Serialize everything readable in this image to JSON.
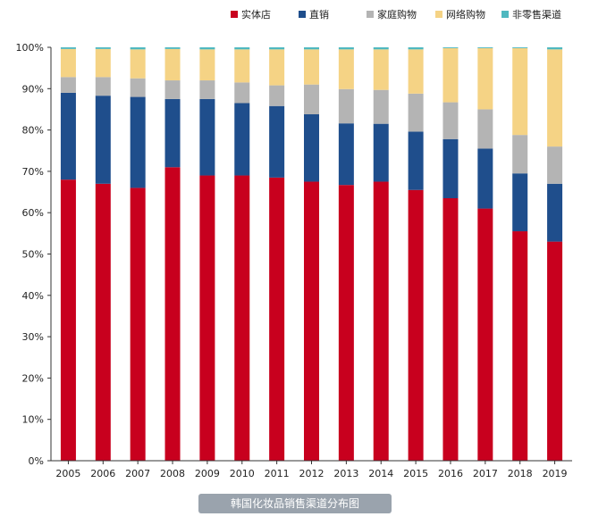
{
  "chart_data": {
    "type": "bar",
    "stacked": true,
    "categories": [
      "2005",
      "2006",
      "2007",
      "2008",
      "2009",
      "2010",
      "2011",
      "2012",
      "2013",
      "2014",
      "2015",
      "2016",
      "2017",
      "2018",
      "2019"
    ],
    "series": [
      {
        "name": "实体店",
        "color": "#c8001e",
        "values": [
          68,
          67,
          66,
          71,
          69,
          69,
          68.5,
          67.5,
          66.7,
          67.5,
          65.5,
          63.5,
          61,
          55.5,
          53
        ]
      },
      {
        "name": "直销",
        "color": "#1f4e8c",
        "values": [
          21,
          21.3,
          22,
          16.5,
          18.5,
          17.5,
          17.3,
          16.3,
          14.9,
          14,
          14.1,
          14.3,
          14.5,
          14,
          14
        ]
      },
      {
        "name": "家庭购物",
        "color": "#b4b4b4",
        "values": [
          3.8,
          4.5,
          4.5,
          4.5,
          4.5,
          5,
          5,
          7.2,
          8.3,
          8.2,
          9.2,
          8.9,
          9.5,
          9.3,
          9
        ]
      },
      {
        "name": "网络购物",
        "color": "#f5d385",
        "values": [
          6.8,
          6.8,
          7,
          7.6,
          7.5,
          8,
          8.7,
          8.5,
          9.6,
          9.8,
          10.7,
          13.1,
          14.8,
          21,
          23.5
        ]
      },
      {
        "name": "非零售渠道",
        "color": "#4fb8c0",
        "values": [
          0.4,
          0.4,
          0.5,
          0.4,
          0.5,
          0.5,
          0.5,
          0.5,
          0.5,
          0.5,
          0.5,
          0.2,
          0.2,
          0.2,
          0.5
        ]
      }
    ],
    "ylim": [
      0,
      100
    ],
    "yticks": [
      "0%",
      "10%",
      "20%",
      "30%",
      "40%",
      "50%",
      "60%",
      "70%",
      "80%",
      "90%",
      "100%"
    ],
    "legend_position": "top",
    "grid": false
  },
  "caption": "韩国化妆品销售渠道分布图"
}
